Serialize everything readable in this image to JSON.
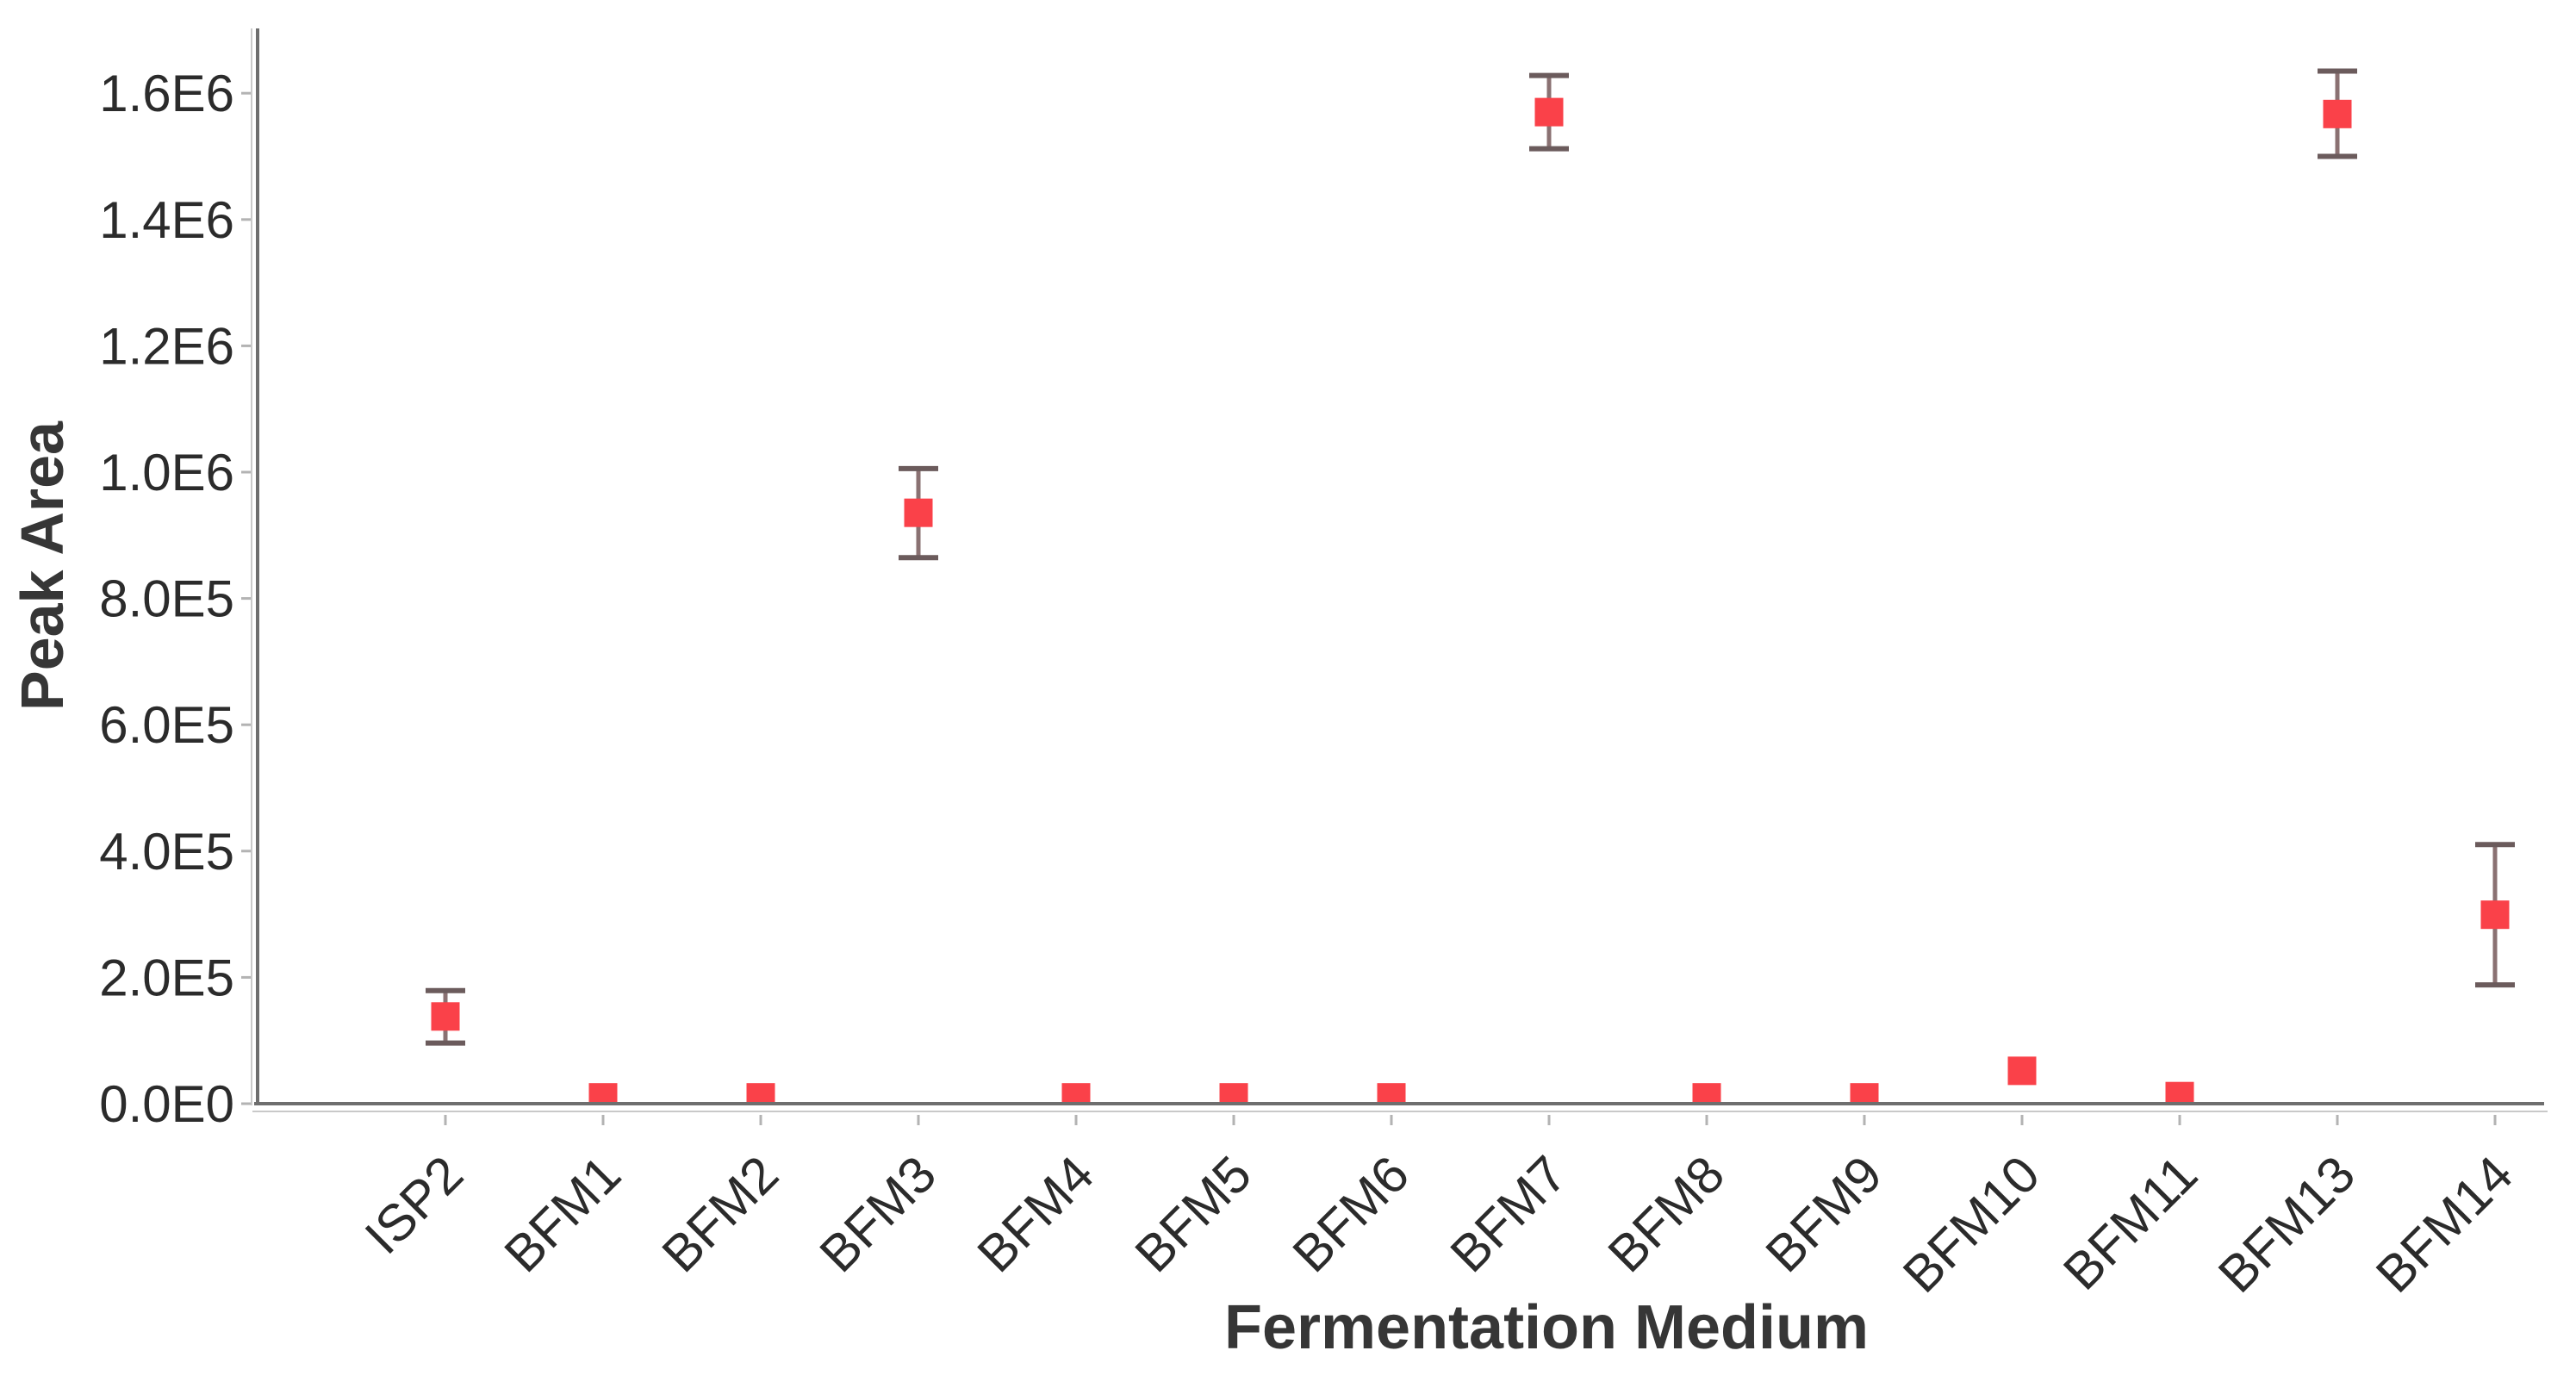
{
  "figure": {
    "background": "#ffffff"
  },
  "chart_data": {
    "type": "scatter",
    "title": "",
    "xlabel": "Fermentation Medium",
    "ylabel": "Peak Area",
    "categories": [
      "ISP2",
      "BFM1",
      "BFM2",
      "BFM3",
      "BFM4",
      "BFM5",
      "BFM6",
      "BFM7",
      "BFM8",
      "BFM9",
      "BFM10",
      "BFM11",
      "BFM13",
      "BFM14"
    ],
    "values": [
      138000,
      10000,
      10000,
      935000,
      10000,
      10000,
      10000,
      1569000,
      10000,
      10000,
      52000,
      12000,
      1566000,
      299000
    ],
    "error_plus": [
      41000,
      0,
      0,
      70000,
      0,
      0,
      0,
      58000,
      0,
      0,
      0,
      0,
      68000,
      111000
    ],
    "error_minus": [
      42000,
      0,
      0,
      71000,
      0,
      0,
      0,
      58000,
      0,
      0,
      0,
      0,
      67000,
      111000
    ],
    "y_tick_labels": [
      "0.0E0",
      "2.0E5",
      "4.0E5",
      "6.0E5",
      "8.0E5",
      "1.0E6",
      "1.2E6",
      "1.4E6",
      "1.6E6"
    ],
    "y_tick_values": [
      0,
      200000,
      400000,
      600000,
      800000,
      1000000,
      1200000,
      1400000,
      1600000
    ],
    "ylim": [
      0,
      1700000
    ],
    "grid": "off",
    "legend": "none",
    "marker_shape": "square",
    "colors": {
      "marker_fill": "#FA4149",
      "error_line": "#8A7172",
      "error_cap": "#6B5B5C",
      "axis_dark": "#6E6E6E",
      "axis_light": "#C9C9C9",
      "tick_mark": "#B3B3B3",
      "tick_label": "#2B2B2B",
      "axis_title": "#363636"
    }
  }
}
